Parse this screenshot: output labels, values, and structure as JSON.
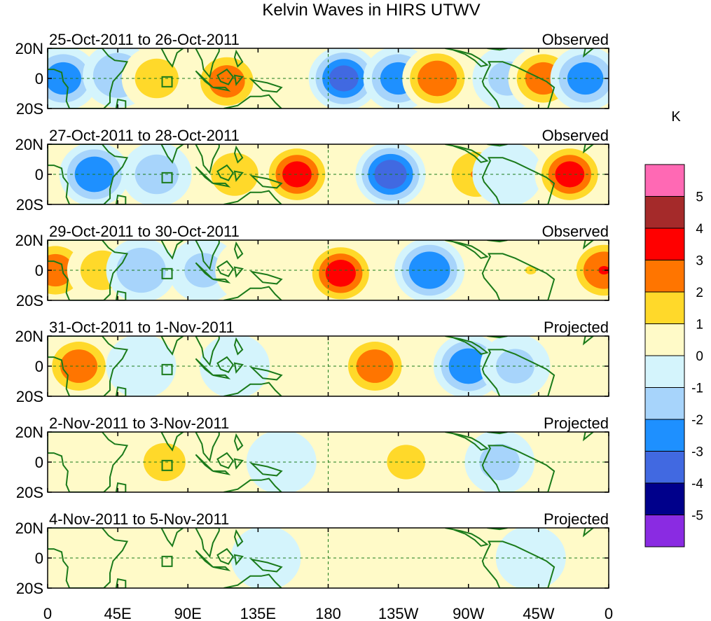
{
  "chart_data": {
    "type": "heatmap",
    "title": "Kelvin Waves in HIRS UTWV",
    "units": "K",
    "x_tick_labels": [
      "0",
      "45E",
      "90E",
      "135E",
      "180",
      "135W",
      "90W",
      "45W",
      "0"
    ],
    "x_tick_degrees_east": [
      0,
      45,
      90,
      135,
      180,
      225,
      270,
      315,
      360
    ],
    "y_tick_labels": [
      "20N",
      "0",
      "20S"
    ],
    "y_tick_degrees": [
      20,
      0,
      -20
    ],
    "xlim": [
      0,
      360
    ],
    "ylim": [
      -20,
      20
    ],
    "colorbar": {
      "label": "K",
      "levels": [
        "5",
        "4",
        "3",
        "2",
        "1",
        "0",
        "-1",
        "-2",
        "-3",
        "-4",
        "-5"
      ],
      "colors": [
        "#ff69b4",
        "#a52a2a",
        "#ff0000",
        "#ff7500",
        "#ffd92a",
        "#fffac8",
        "#d4f4fc",
        "#a7d4fb",
        "#1e90ff",
        "#4169e1",
        "#00008b",
        "#8a2be2"
      ]
    },
    "panels": [
      {
        "date_range": "25-Oct-2011 to 26-Oct-2011",
        "status": "Observed",
        "anomaly_centers": [
          {
            "lon": 10,
            "lat": 0,
            "value": -2.5
          },
          {
            "lon": 45,
            "lat": 2,
            "value": -2
          },
          {
            "lon": 70,
            "lat": 0,
            "value": 1.5
          },
          {
            "lon": 115,
            "lat": -2,
            "value": 2.5
          },
          {
            "lon": 190,
            "lat": 0,
            "value": -3.2
          },
          {
            "lon": 225,
            "lat": 0,
            "value": -2.5
          },
          {
            "lon": 250,
            "lat": 0,
            "value": 2.8
          },
          {
            "lon": 295,
            "lat": 0,
            "value": -1.2
          },
          {
            "lon": 318,
            "lat": 0,
            "value": 2.5
          },
          {
            "lon": 345,
            "lat": 0,
            "value": -2.5
          }
        ]
      },
      {
        "date_range": "27-Oct-2011 to 28-Oct-2011",
        "status": "Observed",
        "anomaly_centers": [
          {
            "lon": 30,
            "lat": 0,
            "value": -2.8
          },
          {
            "lon": 70,
            "lat": 0,
            "value": -1.5
          },
          {
            "lon": 120,
            "lat": 0,
            "value": 1.8
          },
          {
            "lon": 160,
            "lat": 0,
            "value": 3.2
          },
          {
            "lon": 220,
            "lat": 0,
            "value": -3.5
          },
          {
            "lon": 275,
            "lat": 0,
            "value": 2
          },
          {
            "lon": 295,
            "lat": 0,
            "value": -1
          },
          {
            "lon": 335,
            "lat": 0,
            "value": 3.2
          }
        ]
      },
      {
        "date_range": "29-Oct-2011 to 30-Oct-2011",
        "status": "Observed",
        "anomaly_centers": [
          {
            "lon": 5,
            "lat": 0,
            "value": 2.5
          },
          {
            "lon": 35,
            "lat": 0,
            "value": 1.5
          },
          {
            "lon": 60,
            "lat": 0,
            "value": -2
          },
          {
            "lon": 100,
            "lat": 0,
            "value": -1.2
          },
          {
            "lon": 130,
            "lat": 0,
            "value": 0.8
          },
          {
            "lon": 188,
            "lat": -2,
            "value": 3.3
          },
          {
            "lon": 245,
            "lat": 0,
            "value": -3
          },
          {
            "lon": 310,
            "lat": 0,
            "value": 1
          },
          {
            "lon": 357,
            "lat": 0,
            "value": 3
          }
        ]
      },
      {
        "date_range": "31-Oct-2011 to 1-Nov-2011",
        "status": "Projected",
        "anomaly_centers": [
          {
            "lon": 20,
            "lat": 0,
            "value": 2.6
          },
          {
            "lon": 60,
            "lat": 0,
            "value": -0.8
          },
          {
            "lon": 120,
            "lat": 0,
            "value": -0.8
          },
          {
            "lon": 210,
            "lat": 0,
            "value": 2.6
          },
          {
            "lon": 270,
            "lat": 0,
            "value": -2.8
          },
          {
            "lon": 300,
            "lat": 0,
            "value": -1.2
          },
          {
            "lon": 350,
            "lat": 0,
            "value": 0.5
          }
        ]
      },
      {
        "date_range": "2-Nov-2011 to 3-Nov-2011",
        "status": "Projected",
        "anomaly_centers": [
          {
            "lon": 30,
            "lat": 0,
            "value": 0.6
          },
          {
            "lon": 75,
            "lat": 0,
            "value": 1.4
          },
          {
            "lon": 150,
            "lat": 0,
            "value": -0.6
          },
          {
            "lon": 230,
            "lat": 0,
            "value": 1.2
          },
          {
            "lon": 290,
            "lat": 0,
            "value": -1.3
          },
          {
            "lon": 340,
            "lat": 0,
            "value": 0.5
          }
        ]
      },
      {
        "date_range": "4-Nov-2011 to 5-Nov-2011",
        "status": "Projected",
        "anomaly_centers": [
          {
            "lon": 20,
            "lat": 0,
            "value": 0.6
          },
          {
            "lon": 90,
            "lat": 0,
            "value": 0.7
          },
          {
            "lon": 140,
            "lat": 0,
            "value": -0.6
          },
          {
            "lon": 250,
            "lat": 0,
            "value": 0.6
          },
          {
            "lon": 310,
            "lat": 0,
            "value": -0.6
          }
        ]
      }
    ]
  }
}
